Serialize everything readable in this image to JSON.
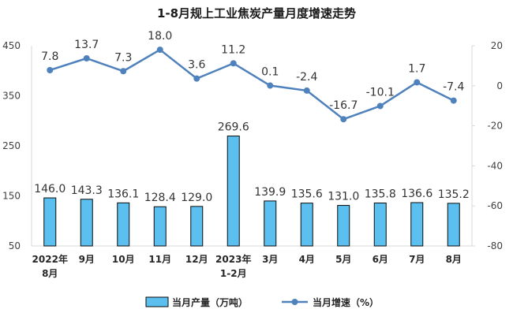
{
  "chart_data": {
    "type": "bar+line",
    "title": "1-8月规上工业焦炭产量月度增速走势",
    "categories": [
      [
        "2022年",
        "8月"
      ],
      [
        "9月"
      ],
      [
        "10月"
      ],
      [
        "11月"
      ],
      [
        "12月"
      ],
      [
        "2023年",
        "1-2月"
      ],
      [
        "3月"
      ],
      [
        "4月"
      ],
      [
        "5月"
      ],
      [
        "6月"
      ],
      [
        "7月"
      ],
      [
        "8月"
      ]
    ],
    "left_axis": {
      "min": 50,
      "max": 450,
      "ticks": [
        50,
        150,
        250,
        350,
        450
      ]
    },
    "right_axis": {
      "min": -80,
      "max": 20,
      "ticks": [
        20,
        0,
        -20,
        -40,
        -60,
        -80
      ]
    },
    "series": [
      {
        "name": "当月产量（万吨）",
        "kind": "bar",
        "axis": "left",
        "color": "#5bc0f0",
        "border": "#0a0a0a",
        "values": [
          146.0,
          143.3,
          136.1,
          128.4,
          129.0,
          269.6,
          139.9,
          135.6,
          131.0,
          135.8,
          136.6,
          135.2
        ],
        "labels": [
          "146.0",
          "143.3",
          "136.1",
          "128.4",
          "129.0",
          "269.6",
          "139.9",
          "135.6",
          "131.0",
          "135.8",
          "136.6",
          "135.2"
        ]
      },
      {
        "name": "当月增速（%）",
        "kind": "line",
        "axis": "right",
        "color": "#4f81bd",
        "values": [
          7.8,
          13.7,
          7.3,
          18.0,
          3.6,
          11.2,
          0.1,
          -2.4,
          -16.7,
          -10.1,
          1.7,
          -7.4
        ],
        "labels": [
          "7.8",
          "13.7",
          "7.3",
          "18.0",
          "3.6",
          "11.2",
          "0.1",
          "-2.4",
          "-16.7",
          "-10.1",
          "1.7",
          "-7.4"
        ]
      }
    ],
    "legend_position": "bottom-center",
    "grid": false
  }
}
